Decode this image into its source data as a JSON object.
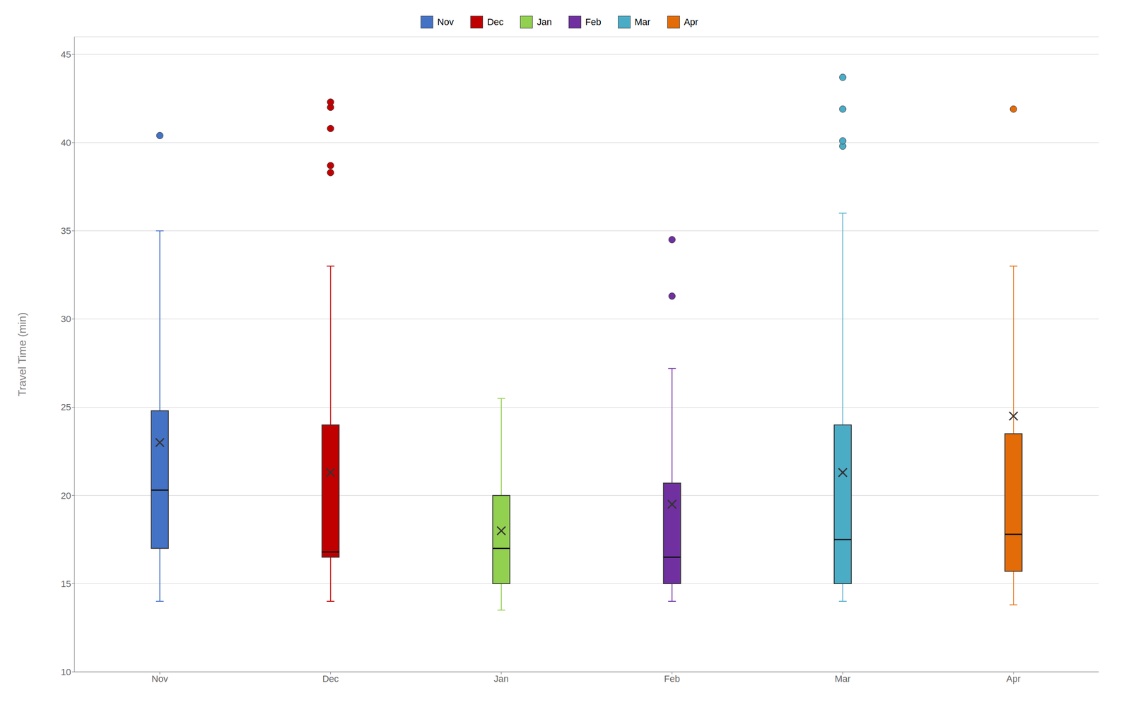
{
  "chart_data": {
    "type": "box",
    "ylabel": "Travel Time (min)",
    "categories": [
      "Nov",
      "Dec",
      "Jan",
      "Feb",
      "Mar",
      "Apr"
    ],
    "q1": [
      17.0,
      16.5,
      15.0,
      15.0,
      15.0,
      15.7
    ],
    "median": [
      20.3,
      16.8,
      17.0,
      16.5,
      17.5,
      17.8
    ],
    "q3": [
      24.8,
      24.0,
      20.0,
      20.7,
      24.0,
      23.5
    ],
    "mean": [
      23.0,
      21.3,
      18.0,
      19.5,
      21.3,
      24.5
    ],
    "whislo": [
      14.0,
      14.0,
      13.5,
      14.0,
      14.0,
      13.8
    ],
    "whishi": [
      35.0,
      33.0,
      25.5,
      27.2,
      36.0,
      33.0
    ],
    "fliers": [
      [
        40.4
      ],
      [
        38.3,
        38.7,
        40.8,
        42.0,
        42.3
      ],
      [],
      [
        31.3,
        34.5
      ],
      [
        39.8,
        40.1,
        41.9,
        43.7
      ],
      [
        41.9
      ]
    ],
    "colors": [
      "#4472C4",
      "#C00000",
      "#92D050",
      "#7030A0",
      "#4BACC6",
      "#E36C09"
    ],
    "ylim": [
      10,
      46
    ],
    "yticks": [
      10,
      15,
      20,
      25,
      30,
      35,
      40,
      45
    ],
    "grid": true,
    "legend": "top"
  }
}
